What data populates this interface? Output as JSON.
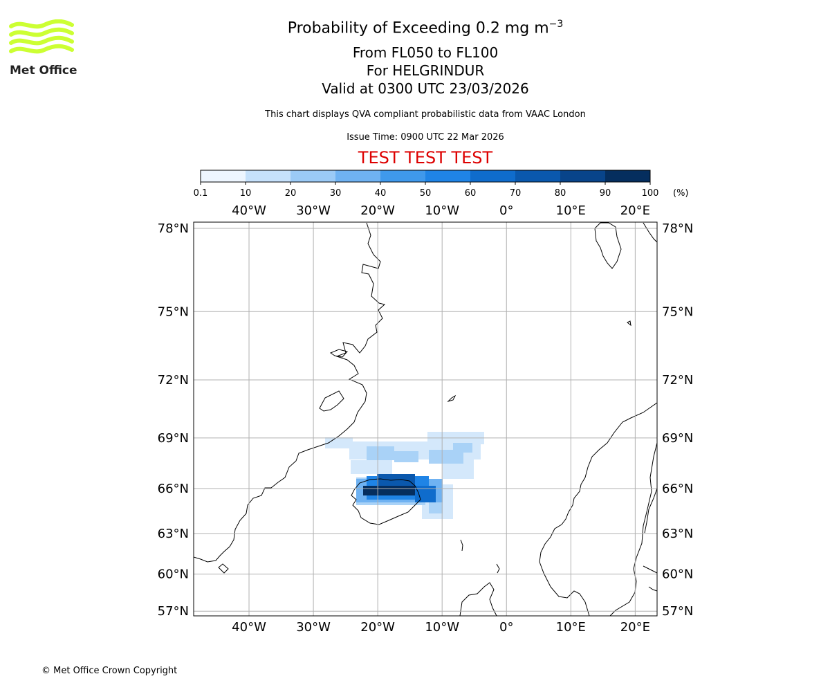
{
  "header": {
    "title_prefix": "Probability of Exceeding 0.2 mg m",
    "title_superscript": "−3",
    "level_range": "From FL050 to FL100",
    "location": "For HELGRINDUR",
    "valid_time": "Valid at 0300 UTC 23/03/2026",
    "disclaimer": "This chart displays QVA compliant probabilistic data from VAAC London",
    "issue_time": "Issue Time: 0900 UTC 22 Mar 2026",
    "test_banner": "TEST TEST TEST"
  },
  "logo": {
    "text": "Met Office",
    "color": "#ccff33"
  },
  "colorbar": {
    "unit": "(%)",
    "tick_labels": [
      "0.1",
      "10",
      "20",
      "30",
      "40",
      "50",
      "60",
      "70",
      "80",
      "90",
      "100"
    ],
    "colors": [
      "#eef6ff",
      "#c6e1fb",
      "#9bcaf6",
      "#6fb2f2",
      "#3f99ec",
      "#1f84e6",
      "#0f6ccc",
      "#0a58ad",
      "#08448a",
      "#052e5e"
    ]
  },
  "map": {
    "lon_labels": [
      "40°W",
      "30°W",
      "20°W",
      "10°W",
      "0°",
      "10°E",
      "20°E"
    ],
    "lat_labels": [
      "78°N",
      "75°N",
      "72°N",
      "69°N",
      "66°N",
      "63°N",
      "60°N",
      "57°N"
    ],
    "lon_values": [
      -40,
      -30,
      -20,
      -10,
      0,
      10,
      20
    ],
    "lat_values": [
      78,
      75,
      72,
      69,
      66,
      63,
      60,
      57
    ],
    "lon_range": [
      -48.6,
      23.4
    ],
    "lat_range": [
      56.6,
      78.2
    ],
    "grid": true
  },
  "footer": {
    "copyright": "© Met Office Crown Copyright"
  }
}
